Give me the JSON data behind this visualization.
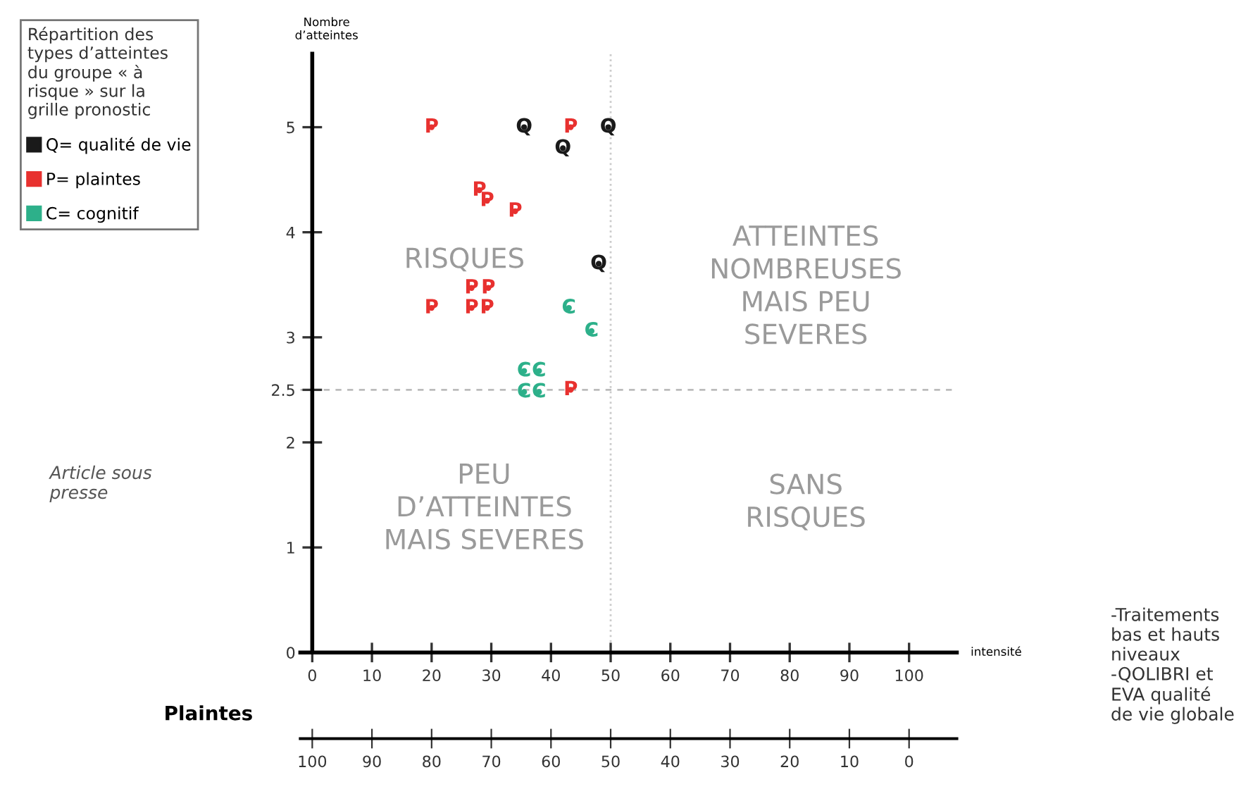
{
  "chart_data": {
    "type": "scatter",
    "xlabel": "intensité",
    "ylabel": "Nombre\nd’atteintes",
    "x2label": "Plaintes",
    "legend_title": "Répartition des\ntypes d’atteintes\ndu groupe « à\nrisque » sur la\ngrille pronostic",
    "legend": "top left",
    "grid": false,
    "xlim": [
      -2,
      108
    ],
    "xticks": [
      0,
      10,
      20,
      30,
      40,
      50,
      60,
      70,
      80,
      90,
      100
    ],
    "x2lim": [
      102,
      -8
    ],
    "x2ticks": [
      100,
      90,
      80,
      70,
      60,
      50,
      40,
      30,
      20,
      10,
      0
    ],
    "ylim": [
      0,
      5.7
    ],
    "yticks": [
      0,
      1,
      2,
      2.5,
      3,
      4,
      5
    ],
    "series": [
      {
        "name": "Q= qualité de vie",
        "color": "#1a1a1a",
        "x": [
          35.5,
          42,
          49.6,
          48
        ],
        "values": [
          5,
          4.8,
          5,
          3.7
        ],
        "value_labels": [
          "Q",
          "Q",
          "Q",
          "Q"
        ]
      },
      {
        "name": "P= plaintes",
        "color": "#e8312f",
        "x": [
          20,
          43.3,
          28,
          29.3,
          34,
          26.7,
          29.5,
          20,
          26.7,
          29.3,
          43.3
        ],
        "values": [
          5,
          5,
          4.4,
          4.3,
          4.2,
          3.47,
          3.47,
          3.28,
          3.28,
          3.28,
          2.5
        ],
        "value_labels": [
          "P",
          "P",
          "P",
          "P",
          "P",
          "P",
          "P",
          "P",
          "P",
          "P",
          "P"
        ]
      },
      {
        "name": "C= cognitif",
        "color": "#2db08a",
        "x": [
          43,
          46.8,
          35.5,
          38,
          35.5,
          38
        ],
        "values": [
          3.28,
          3.06,
          2.68,
          2.68,
          2.48,
          2.48
        ],
        "value_labels": [
          "C",
          "C",
          "C",
          "C",
          "C",
          "C"
        ]
      }
    ],
    "ref_lines": [
      {
        "axis": "y",
        "value": 2.5,
        "color": "#bbbbbb",
        "line_style": "dashed"
      },
      {
        "axis": "x",
        "value": 50,
        "color": "#cccccc",
        "line_style": "dotted"
      }
    ],
    "annotations": [
      "Article sous\npresse",
      "-Traitements\nbas et hauts\nniveaux\n-QOLIBRI et\nEVA qualité\nde vie globale",
      "RISQUES",
      "ATTEINTES\nNOMBREUSES\nMAIS PEU\nSEVERES",
      "PEU\nD’ATTEINTES\nMAIS SEVERES",
      "SANS\nRISQUES"
    ]
  }
}
